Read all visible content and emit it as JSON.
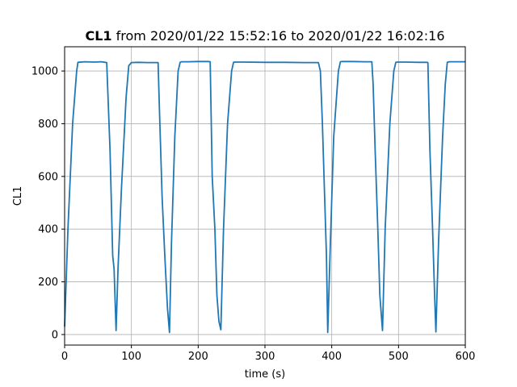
{
  "chart_data": {
    "type": "line",
    "title": {
      "bold": "CL1",
      "rest": " from 2020/01/22 15:52:16 to 2020/01/22 16:02:16"
    },
    "xlabel": "time (s)",
    "ylabel": "CL1",
    "xlim": [
      0,
      600
    ],
    "ylim": [
      -40,
      1092
    ],
    "xticks": [
      0,
      100,
      200,
      300,
      400,
      500,
      600
    ],
    "yticks": [
      0,
      200,
      400,
      600,
      800,
      1000
    ],
    "grid": true,
    "line_color": "#1f77b4",
    "series": [
      {
        "x": [
          0,
          5,
          12,
          18,
          20,
          30,
          45,
          55,
          63,
          68,
          72,
          74,
          77,
          80,
          85,
          92,
          96,
          100,
          110,
          125,
          140,
          142,
          146,
          150,
          154,
          157,
          160,
          165,
          170,
          173,
          175,
          185,
          200,
          215,
          218,
          221,
          225,
          228,
          231,
          234,
          238,
          244,
          250,
          253,
          255,
          270,
          300,
          330,
          360,
          380,
          383,
          386,
          389,
          392,
          394,
          398,
          403,
          410,
          413,
          415,
          430,
          450,
          460,
          462,
          465,
          469,
          472,
          476,
          480,
          487,
          493,
          496,
          498,
          510,
          530,
          542,
          544,
          547,
          551,
          554,
          556,
          560,
          566,
          570,
          573,
          576,
          585,
          600
        ],
        "y": [
          30,
          400,
          800,
          1000,
          1033,
          1035,
          1034,
          1035,
          1032,
          700,
          300,
          250,
          15,
          250,
          550,
          900,
          1020,
          1032,
          1033,
          1032,
          1032,
          850,
          520,
          300,
          100,
          8,
          350,
          750,
          1000,
          1033,
          1035,
          1035,
          1036,
          1036,
          1035,
          600,
          400,
          150,
          50,
          18,
          400,
          800,
          1000,
          1033,
          1034,
          1034,
          1033,
          1033,
          1032,
          1032,
          1000,
          800,
          550,
          300,
          8,
          350,
          750,
          1000,
          1035,
          1036,
          1036,
          1035,
          1035,
          950,
          700,
          400,
          150,
          15,
          400,
          800,
          1000,
          1033,
          1034,
          1034,
          1033,
          1033,
          1032,
          700,
          400,
          150,
          10,
          350,
          750,
          950,
          1033,
          1035,
          1035,
          1035
        ]
      }
    ]
  }
}
